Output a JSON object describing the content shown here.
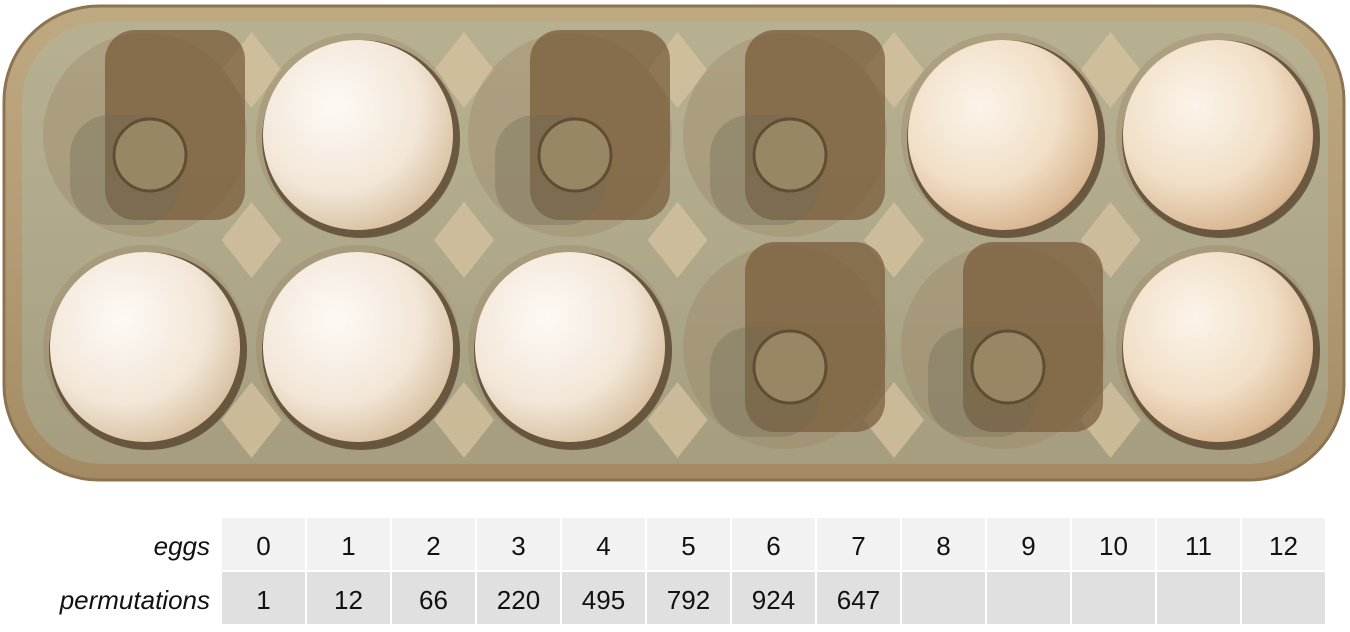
{
  "table": {
    "rows": [
      {
        "label": "eggs",
        "cells": [
          "0",
          "1",
          "2",
          "3",
          "4",
          "5",
          "6",
          "7",
          "8",
          "9",
          "10",
          "11",
          "12"
        ]
      },
      {
        "label": "permutations",
        "cells": [
          "1",
          "12",
          "66",
          "220",
          "495",
          "792",
          "924",
          "647",
          "",
          "",
          "",
          "",
          ""
        ]
      }
    ]
  },
  "carton": {
    "colors": {
      "cardboard": "#b8a27c",
      "cup_shadow": "#7a5e3c",
      "egg": "#f3e3cf",
      "egg_white": "#f8f2ea"
    },
    "slots_top": [
      "empty",
      "egg",
      "empty",
      "empty",
      "egg",
      "egg"
    ],
    "slots_bottom": [
      "egg",
      "egg",
      "egg",
      "empty",
      "empty",
      "egg"
    ]
  }
}
